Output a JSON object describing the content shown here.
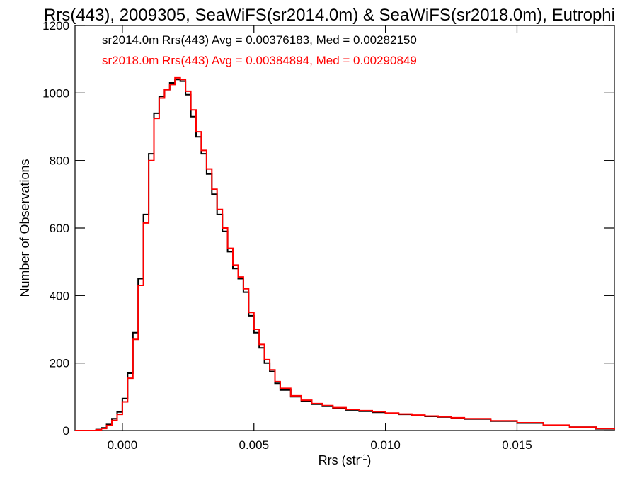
{
  "chart_data": {
    "type": "line",
    "style": "step-histogram",
    "title": "Rrs(443), 2009305, SeaWiFS(sr2014.0m) & SeaWiFS(sr2018.0m), Eutrophi",
    "xlabel_main": "Rrs (str",
    "xlabel_sup": "-1",
    "xlabel_end": ")",
    "ylabel": "Number of Observations",
    "xlim": [
      -0.0018,
      0.0187
    ],
    "ylim": [
      0,
      1200
    ],
    "xticks": [
      0.0,
      0.005,
      0.01,
      0.015
    ],
    "xtick_labels": [
      "0.000",
      "0.005",
      "0.010",
      "0.015"
    ],
    "yticks": [
      0,
      200,
      400,
      600,
      800,
      1000,
      1200
    ],
    "ytick_labels": [
      "0",
      "200",
      "400",
      "600",
      "800",
      "1000",
      "1200"
    ],
    "grid": false,
    "legend_position": "top-left",
    "series": [
      {
        "name": "sr2014.0m Rrs(443) Avg = 0.00376183, Med = 0.00282150",
        "color": "#000000",
        "x": [
          -0.0018,
          -0.001,
          -0.0008,
          -0.0006,
          -0.0004,
          -0.0002,
          0.0,
          0.0002,
          0.0004,
          0.0006,
          0.0008,
          0.001,
          0.0012,
          0.0014,
          0.0016,
          0.0018,
          0.002,
          0.0022,
          0.0024,
          0.0026,
          0.0028,
          0.003,
          0.0032,
          0.0034,
          0.0036,
          0.0038,
          0.004,
          0.0042,
          0.0044,
          0.0046,
          0.0048,
          0.005,
          0.0052,
          0.0054,
          0.0056,
          0.0058,
          0.006,
          0.0064,
          0.0068,
          0.0072,
          0.0076,
          0.008,
          0.0085,
          0.009,
          0.0095,
          0.01,
          0.0105,
          0.011,
          0.0115,
          0.012,
          0.0125,
          0.013,
          0.014,
          0.015,
          0.016,
          0.017,
          0.018,
          0.0187
        ],
        "values": [
          0,
          3,
          8,
          18,
          35,
          55,
          95,
          170,
          290,
          450,
          640,
          820,
          940,
          990,
          1010,
          1030,
          1040,
          1035,
          995,
          930,
          870,
          820,
          760,
          700,
          640,
          590,
          530,
          480,
          450,
          410,
          340,
          290,
          245,
          200,
          175,
          140,
          120,
          100,
          88,
          78,
          72,
          66,
          61,
          57,
          54,
          51,
          48,
          45,
          42,
          40,
          37,
          34,
          28,
          22,
          15,
          10,
          5,
          3
        ]
      },
      {
        "name": "sr2018.0m Rrs(443) Avg = 0.00384894, Med = 0.00290849",
        "color": "#ff0000",
        "x": [
          -0.0018,
          -0.001,
          -0.0008,
          -0.0006,
          -0.0004,
          -0.0002,
          0.0,
          0.0002,
          0.0004,
          0.0006,
          0.0008,
          0.001,
          0.0012,
          0.0014,
          0.0016,
          0.0018,
          0.002,
          0.0022,
          0.0024,
          0.0026,
          0.0028,
          0.003,
          0.0032,
          0.0034,
          0.0036,
          0.0038,
          0.004,
          0.0042,
          0.0044,
          0.0046,
          0.0048,
          0.005,
          0.0052,
          0.0054,
          0.0056,
          0.0058,
          0.006,
          0.0064,
          0.0068,
          0.0072,
          0.0076,
          0.008,
          0.0085,
          0.009,
          0.0095,
          0.01,
          0.0105,
          0.011,
          0.0115,
          0.012,
          0.0125,
          0.013,
          0.014,
          0.015,
          0.016,
          0.017,
          0.018,
          0.0187
        ],
        "values": [
          0,
          2,
          6,
          15,
          30,
          48,
          85,
          155,
          270,
          430,
          615,
          800,
          925,
          985,
          1010,
          1025,
          1045,
          1040,
          1005,
          950,
          885,
          830,
          775,
          715,
          655,
          600,
          540,
          490,
          455,
          420,
          350,
          300,
          255,
          210,
          180,
          145,
          125,
          103,
          90,
          80,
          74,
          68,
          63,
          59,
          56,
          52,
          49,
          46,
          43,
          41,
          38,
          35,
          29,
          23,
          16,
          10,
          6,
          3
        ]
      }
    ]
  }
}
